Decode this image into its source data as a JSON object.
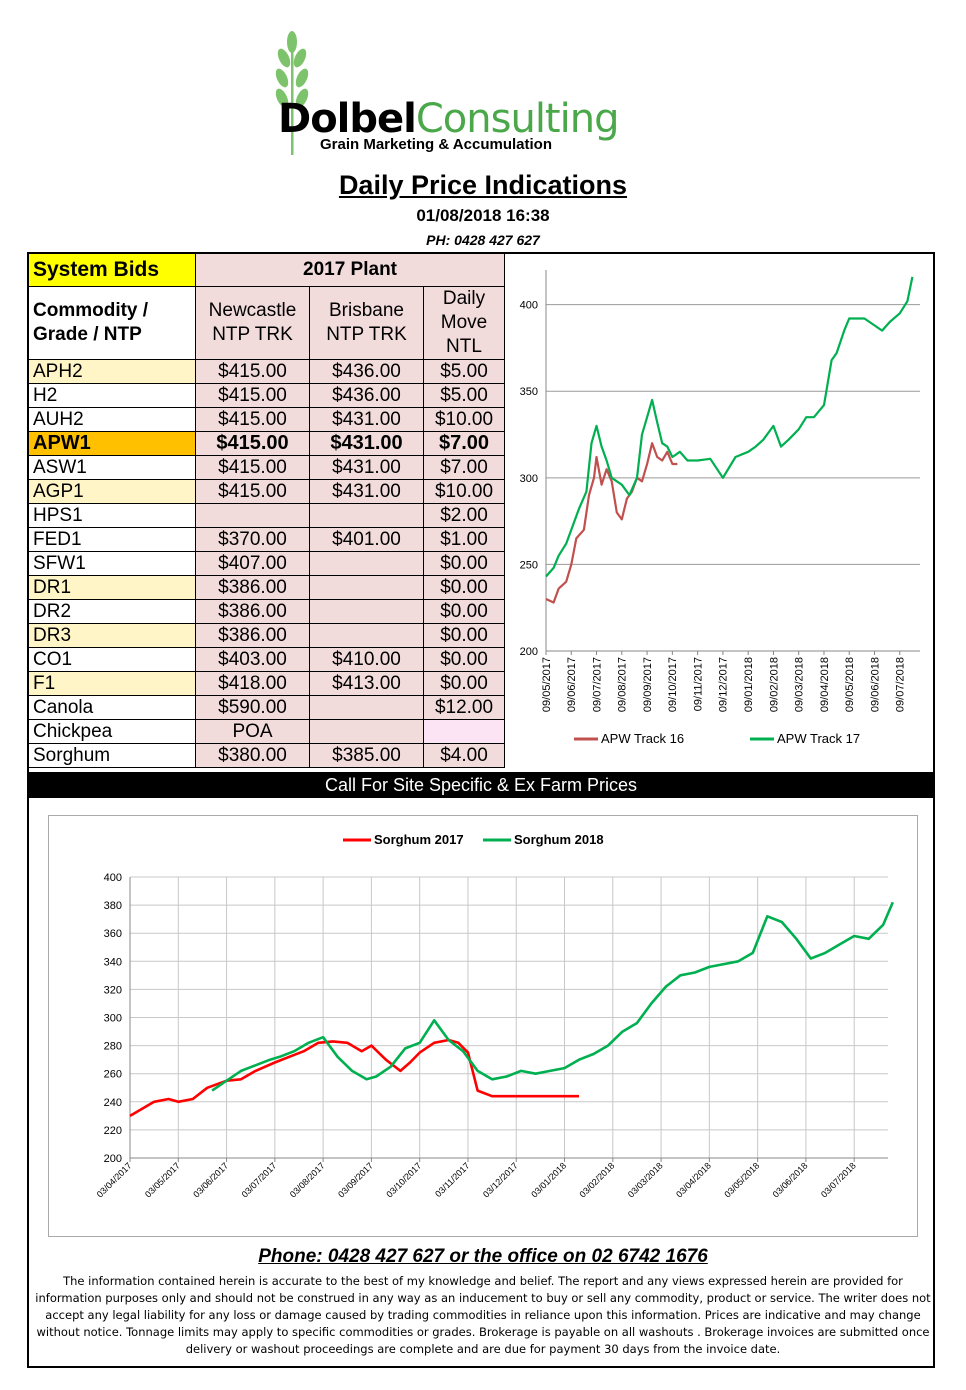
{
  "brand": {
    "name_part1": "Dolbel",
    "name_part2": "Consulting",
    "tagline": "Grain Marketing & Accumulation"
  },
  "header": {
    "title": "Daily Price Indications",
    "datetime": "01/08/2018 16:38",
    "phone": "PH: 0428 427 627"
  },
  "table": {
    "system_bids_label": "System Bids",
    "plant_label": "2017 Plant",
    "col_grade": "Commodity / Grade / NTP",
    "col_newcastle": "Newcastle NTP TRK",
    "col_brisbane": "Brisbane NTP TRK",
    "col_move": "Daily Move NTL",
    "rows": [
      {
        "grade": "APH2",
        "newcastle": "$415.00",
        "brisbane": "$436.00",
        "move": "$5.00"
      },
      {
        "grade": "H2",
        "newcastle": "$415.00",
        "brisbane": "$436.00",
        "move": "$5.00"
      },
      {
        "grade": "AUH2",
        "newcastle": "$415.00",
        "brisbane": "$431.00",
        "move": "$10.00"
      },
      {
        "grade": "APW1",
        "newcastle": "$415.00",
        "brisbane": "$431.00",
        "move": "$7.00"
      },
      {
        "grade": "ASW1",
        "newcastle": "$415.00",
        "brisbane": "$431.00",
        "move": "$7.00"
      },
      {
        "grade": "AGP1",
        "newcastle": "$415.00",
        "brisbane": "$431.00",
        "move": "$10.00"
      },
      {
        "grade": "HPS1",
        "newcastle": "",
        "brisbane": "",
        "move": "$2.00"
      },
      {
        "grade": "FED1",
        "newcastle": "$370.00",
        "brisbane": "$401.00",
        "move": "$1.00"
      },
      {
        "grade": "SFW1",
        "newcastle": "$407.00",
        "brisbane": "",
        "move": "$0.00"
      },
      {
        "grade": "DR1",
        "newcastle": "$386.00",
        "brisbane": "",
        "move": "$0.00"
      },
      {
        "grade": "DR2",
        "newcastle": "$386.00",
        "brisbane": "",
        "move": "$0.00"
      },
      {
        "grade": "DR3",
        "newcastle": "$386.00",
        "brisbane": "",
        "move": "$0.00"
      },
      {
        "grade": "CO1",
        "newcastle": "$403.00",
        "brisbane": "$410.00",
        "move": "$0.00"
      },
      {
        "grade": "F1",
        "newcastle": "$418.00",
        "brisbane": "$413.00",
        "move": "$0.00"
      },
      {
        "grade": "Canola",
        "newcastle": "$590.00",
        "brisbane": "",
        "move": "$12.00"
      },
      {
        "grade": "Chickpea",
        "newcastle": "POA",
        "brisbane": "",
        "move": ""
      },
      {
        "grade": "Sorghum",
        "newcastle": "$380.00",
        "brisbane": "$385.00",
        "move": "$4.00"
      }
    ]
  },
  "call_bar": "Call For Site Specific & Ex Farm Prices",
  "footer": {
    "phone": "Phone: 0428 427 627 or the office on 02 6742 1676",
    "disclaimer": "The information contained herein is accurate to the best of my knowledge and belief.  The report and any views expressed herein are provided for information purposes only and should not be construed in any way as an inducement to buy or sell any commodity, product or service. The writer does not accept any legal liability for any loss or damage caused by trading commodities in reliance upon this information. Prices are indicative and may change without notice. Tonnage limits may apply to specific commodities or grades.  Brokerage is payable on all washouts . Brokerage invoices are submitted once delivery or washout proceedings are complete and are due for payment 30 days from the invoice date."
  },
  "chart_data": [
    {
      "type": "line",
      "ylim": [
        200,
        420
      ],
      "yticks": [
        200,
        250,
        300,
        350,
        400
      ],
      "xticks": [
        "09/05/2017",
        "09/06/2017",
        "09/07/2017",
        "09/08/2017",
        "09/09/2017",
        "09/10/2017",
        "09/11/2017",
        "09/12/2017",
        "09/01/2018",
        "09/02/2018",
        "09/03/2018",
        "09/04/2018",
        "09/05/2018",
        "09/06/2018",
        "09/07/2018"
      ],
      "legend_position": "bottom",
      "series": [
        {
          "name": "APW Track 16",
          "color": "#c0504d",
          "x": [
            0,
            0.3,
            0.5,
            0.8,
            1,
            1.2,
            1.5,
            1.7,
            1.9,
            2,
            2.2,
            2.4,
            2.6,
            2.8,
            3,
            3.2,
            3.4,
            3.6,
            3.8,
            4,
            4.2,
            4.4,
            4.6,
            4.8,
            5,
            5.2
          ],
          "values": [
            230,
            228,
            236,
            240,
            250,
            265,
            270,
            290,
            300,
            312,
            296,
            305,
            298,
            280,
            276,
            288,
            292,
            300,
            298,
            308,
            320,
            312,
            310,
            315,
            308,
            308
          ]
        },
        {
          "name": "APW Track 17",
          "color": "#00b050",
          "x": [
            0,
            0.3,
            0.5,
            0.8,
            1,
            1.3,
            1.6,
            1.8,
            2,
            2.2,
            2.4,
            2.6,
            2.8,
            3,
            3.3,
            3.6,
            3.8,
            4,
            4.2,
            4.4,
            4.6,
            4.8,
            5,
            5.3,
            5.6,
            6,
            6.5,
            7,
            7.5,
            8,
            8.3,
            8.6,
            9,
            9.3,
            9.6,
            10,
            10.3,
            10.6,
            11,
            11.3,
            11.5,
            11.8,
            12,
            12.3,
            12.6,
            13,
            13.3,
            13.6,
            14,
            14.3,
            14.5
          ],
          "values": [
            243,
            248,
            255,
            262,
            270,
            282,
            292,
            320,
            330,
            318,
            310,
            300,
            298,
            296,
            290,
            300,
            325,
            335,
            345,
            332,
            320,
            318,
            312,
            315,
            310,
            310,
            311,
            300,
            312,
            315,
            318,
            322,
            330,
            318,
            322,
            328,
            335,
            335,
            342,
            368,
            372,
            385,
            392,
            392,
            392,
            388,
            385,
            390,
            395,
            402,
            416
          ]
        }
      ]
    },
    {
      "type": "line",
      "ylim": [
        200,
        400
      ],
      "yticks": [
        200,
        220,
        240,
        260,
        280,
        300,
        320,
        340,
        360,
        380,
        400
      ],
      "xticks": [
        "03/04/2017",
        "03/05/2017",
        "03/06/2017",
        "03/07/2017",
        "03/08/2017",
        "03/09/2017",
        "03/10/2017",
        "03/11/2017",
        "03/12/2017",
        "03/01/2018",
        "03/02/2018",
        "03/03/2018",
        "03/04/2018",
        "03/05/2018",
        "03/06/2018",
        "03/07/2018"
      ],
      "legend_position": "top",
      "series": [
        {
          "name": "Sorghum 2017",
          "color": "#ff0000",
          "x": [
            0,
            0.3,
            0.5,
            0.8,
            1,
            1.3,
            1.6,
            2,
            2.3,
            2.6,
            3,
            3.3,
            3.6,
            3.9,
            4.2,
            4.5,
            4.8,
            5,
            5.3,
            5.6,
            5.8,
            6,
            6.3,
            6.6,
            6.8,
            7,
            7.2,
            7.5,
            7.9,
            8.3,
            8.7,
            9,
            9.3
          ],
          "values": [
            230,
            236,
            240,
            242,
            240,
            242,
            250,
            255,
            256,
            262,
            268,
            272,
            276,
            282,
            283,
            282,
            276,
            280,
            270,
            262,
            268,
            275,
            282,
            284,
            282,
            275,
            248,
            244,
            244,
            244,
            244,
            244,
            244
          ]
        },
        {
          "name": "Sorghum 2018",
          "color": "#00b050",
          "x": [
            1.7,
            2,
            2.3,
            2.6,
            2.9,
            3.1,
            3.4,
            3.7,
            4,
            4.3,
            4.6,
            4.9,
            5.1,
            5.4,
            5.7,
            6,
            6.3,
            6.6,
            6.9,
            7.2,
            7.5,
            7.8,
            8.1,
            8.4,
            8.7,
            9,
            9.3,
            9.6,
            9.9,
            10.2,
            10.5,
            10.8,
            11.1,
            11.4,
            11.7,
            12,
            12.3,
            12.6,
            12.9,
            13.2,
            13.5,
            13.8,
            14.1,
            14.4,
            14.7,
            15,
            15.3,
            15.6,
            15.8
          ],
          "values": [
            248,
            255,
            262,
            266,
            270,
            272,
            276,
            282,
            286,
            272,
            262,
            256,
            258,
            265,
            278,
            282,
            298,
            284,
            276,
            262,
            256,
            258,
            262,
            260,
            262,
            264,
            270,
            274,
            280,
            290,
            296,
            310,
            322,
            330,
            332,
            336,
            338,
            340,
            346,
            372,
            368,
            356,
            342,
            346,
            352,
            358,
            356,
            366,
            382
          ]
        }
      ]
    }
  ]
}
